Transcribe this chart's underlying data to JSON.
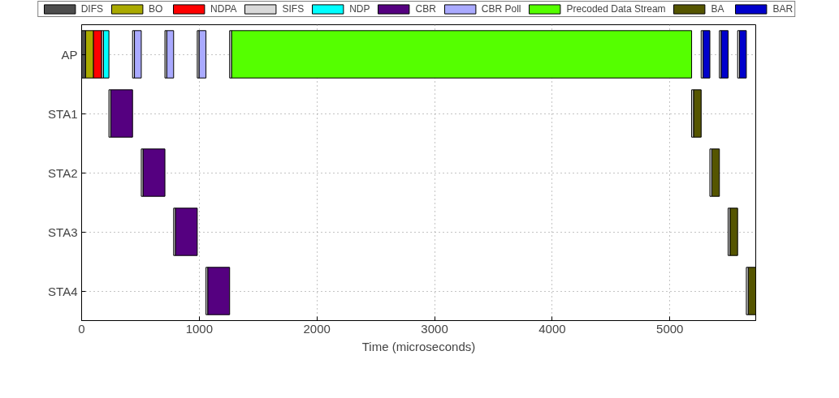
{
  "chart_data": {
    "type": "bar",
    "orientation": "horizontal",
    "xlabel": "Time (microseconds)",
    "categories": [
      "AP",
      "STA1",
      "STA2",
      "STA3",
      "STA4"
    ],
    "xlim": [
      0,
      5730
    ],
    "xticks": [
      0,
      1000,
      2000,
      3000,
      4000,
      5000
    ],
    "grid": true,
    "legend": "top",
    "series": [
      {
        "name": "DIFS",
        "color": "#4d4d4d",
        "values": [
          34,
          null,
          null,
          null,
          null
        ],
        "base": [
          0,
          null,
          null,
          null,
          null
        ]
      },
      {
        "name": "BO",
        "color": "#aaaa00",
        "values": [
          67,
          null,
          null,
          null,
          null
        ],
        "base": [
          34,
          null,
          null,
          null,
          null
        ]
      },
      {
        "name": "NDPA",
        "color": "#ff0000",
        "values": [
          69,
          null,
          null,
          null,
          null
        ],
        "base": [
          101,
          null,
          null,
          null,
          null
        ]
      },
      {
        "name": "SIFS",
        "color": "#d9d9d9",
        "values": [
          16,
          16,
          16,
          16,
          16
        ],
        "base": [
          170,
          232,
          507,
          782,
          1057
        ]
      },
      {
        "name": "NDP",
        "color": "#00ffff",
        "values": [
          46,
          null,
          null,
          null,
          null
        ],
        "base": [
          186,
          null,
          null,
          null,
          null
        ]
      },
      {
        "name": "CBR",
        "color": "#550080",
        "values": [
          null,
          185,
          185,
          185,
          185
        ],
        "base": [
          null,
          248,
          523,
          798,
          1073
        ]
      },
      {
        "name": "CBR Poll",
        "color": "#aaaaff",
        "values": [
          58,
          null,
          null,
          null,
          null
        ],
        "base": [
          449,
          null,
          null,
          null,
          null
        ]
      },
      {
        "name": "Precoded Data Stream",
        "color": "#55ff00",
        "values": [
          3911,
          null,
          null,
          null,
          null
        ],
        "base": [
          1274,
          null,
          null,
          null,
          null
        ]
      },
      {
        "name": "BA",
        "color": "#555500",
        "values": [
          null,
          65,
          65,
          65,
          64
        ],
        "base": [
          null,
          5201,
          5356,
          5511,
          5666
        ]
      },
      {
        "name": "BAR",
        "color": "#0000cc",
        "values": [
          58,
          null,
          null,
          null,
          null
        ],
        "base": [
          5282,
          null,
          null,
          null,
          null
        ]
      },
      {
        "color": "#d9d9d9",
        "values": [
          16,
          16,
          16,
          16,
          16
        ],
        "base": [
          433,
          5185,
          5340,
          5495,
          5650
        ]
      },
      {
        "color": "#d9d9d9",
        "values": [
          16,
          null,
          null,
          null,
          null
        ],
        "base": [
          708,
          null,
          null,
          null,
          null
        ]
      },
      {
        "color": "#d9d9d9",
        "values": [
          16,
          null,
          null,
          null,
          null
        ],
        "base": [
          983,
          null,
          null,
          null,
          null
        ]
      },
      {
        "color": "#d9d9d9",
        "values": [
          16,
          null,
          null,
          null,
          null
        ],
        "base": [
          1258,
          null,
          null,
          null,
          null
        ]
      },
      {
        "color": "#d9d9d9",
        "values": [
          16,
          null,
          null,
          null,
          null
        ],
        "base": [
          5266,
          null,
          null,
          null,
          null
        ]
      },
      {
        "color": "#d9d9d9",
        "values": [
          16,
          null,
          null,
          null,
          null
        ],
        "base": [
          5421,
          null,
          null,
          null,
          null
        ]
      },
      {
        "color": "#d9d9d9",
        "values": [
          16,
          null,
          null,
          null,
          null
        ],
        "base": [
          5576,
          null,
          null,
          null,
          null
        ]
      },
      {
        "color": "#aaaaff",
        "values": [
          58,
          null,
          null,
          null,
          null
        ],
        "base": [
          724,
          null,
          null,
          null,
          null
        ]
      },
      {
        "color": "#aaaaff",
        "values": [
          58,
          null,
          null,
          null,
          null
        ],
        "base": [
          999,
          null,
          null,
          null,
          null
        ]
      },
      {
        "color": "#0000cc",
        "values": [
          58,
          null,
          null,
          null,
          null
        ],
        "base": [
          5437,
          null,
          null,
          null,
          null
        ]
      },
      {
        "color": "#0000cc",
        "values": [
          58,
          null,
          null,
          null,
          null
        ],
        "base": [
          5592,
          null,
          null,
          null,
          null
        ]
      }
    ]
  }
}
